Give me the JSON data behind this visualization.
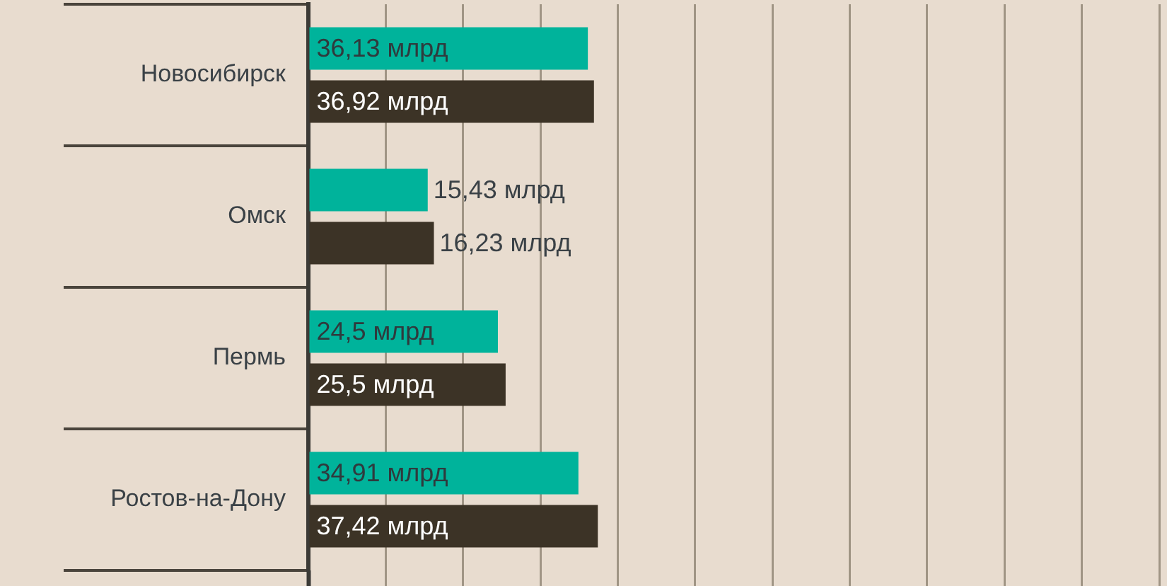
{
  "chart_data": {
    "type": "bar",
    "orientation": "horizontal",
    "categories": [
      "Новосибирск",
      "Омск",
      "Пермь",
      "Ростов-на-Дону"
    ],
    "series": [
      {
        "color": "#00b39b",
        "values": [
          36.13,
          15.43,
          24.5,
          34.91
        ],
        "value_labels": [
          "36,13 млрд",
          "15,43 млрд",
          "24,5 млрд",
          "34,91 млрд"
        ]
      },
      {
        "color": "#3c3326",
        "values": [
          36.92,
          16.23,
          25.5,
          37.42
        ],
        "value_labels": [
          "36,92 млрд",
          "16,23 млрд",
          "25,5 млрд",
          "37,42 млрд"
        ]
      }
    ],
    "xlim": [
      0,
      111
    ],
    "xticks": [
      {
        "value": 0,
        "label": null
      },
      {
        "value": 10,
        "label": null
      },
      {
        "value": 20,
        "label": null
      },
      {
        "value": 30,
        "label": null
      },
      {
        "value": 40,
        "label": null
      },
      {
        "value": 50,
        "label": null
      },
      {
        "value": 60,
        "label": null
      },
      {
        "value": 70,
        "label": null
      },
      {
        "value": 80,
        "label": null
      },
      {
        "value": 90,
        "label": null
      },
      {
        "value": 100,
        "label": null
      },
      {
        "value": 110,
        "label": null
      }
    ],
    "grid": "x",
    "tick_labels": "y"
  }
}
